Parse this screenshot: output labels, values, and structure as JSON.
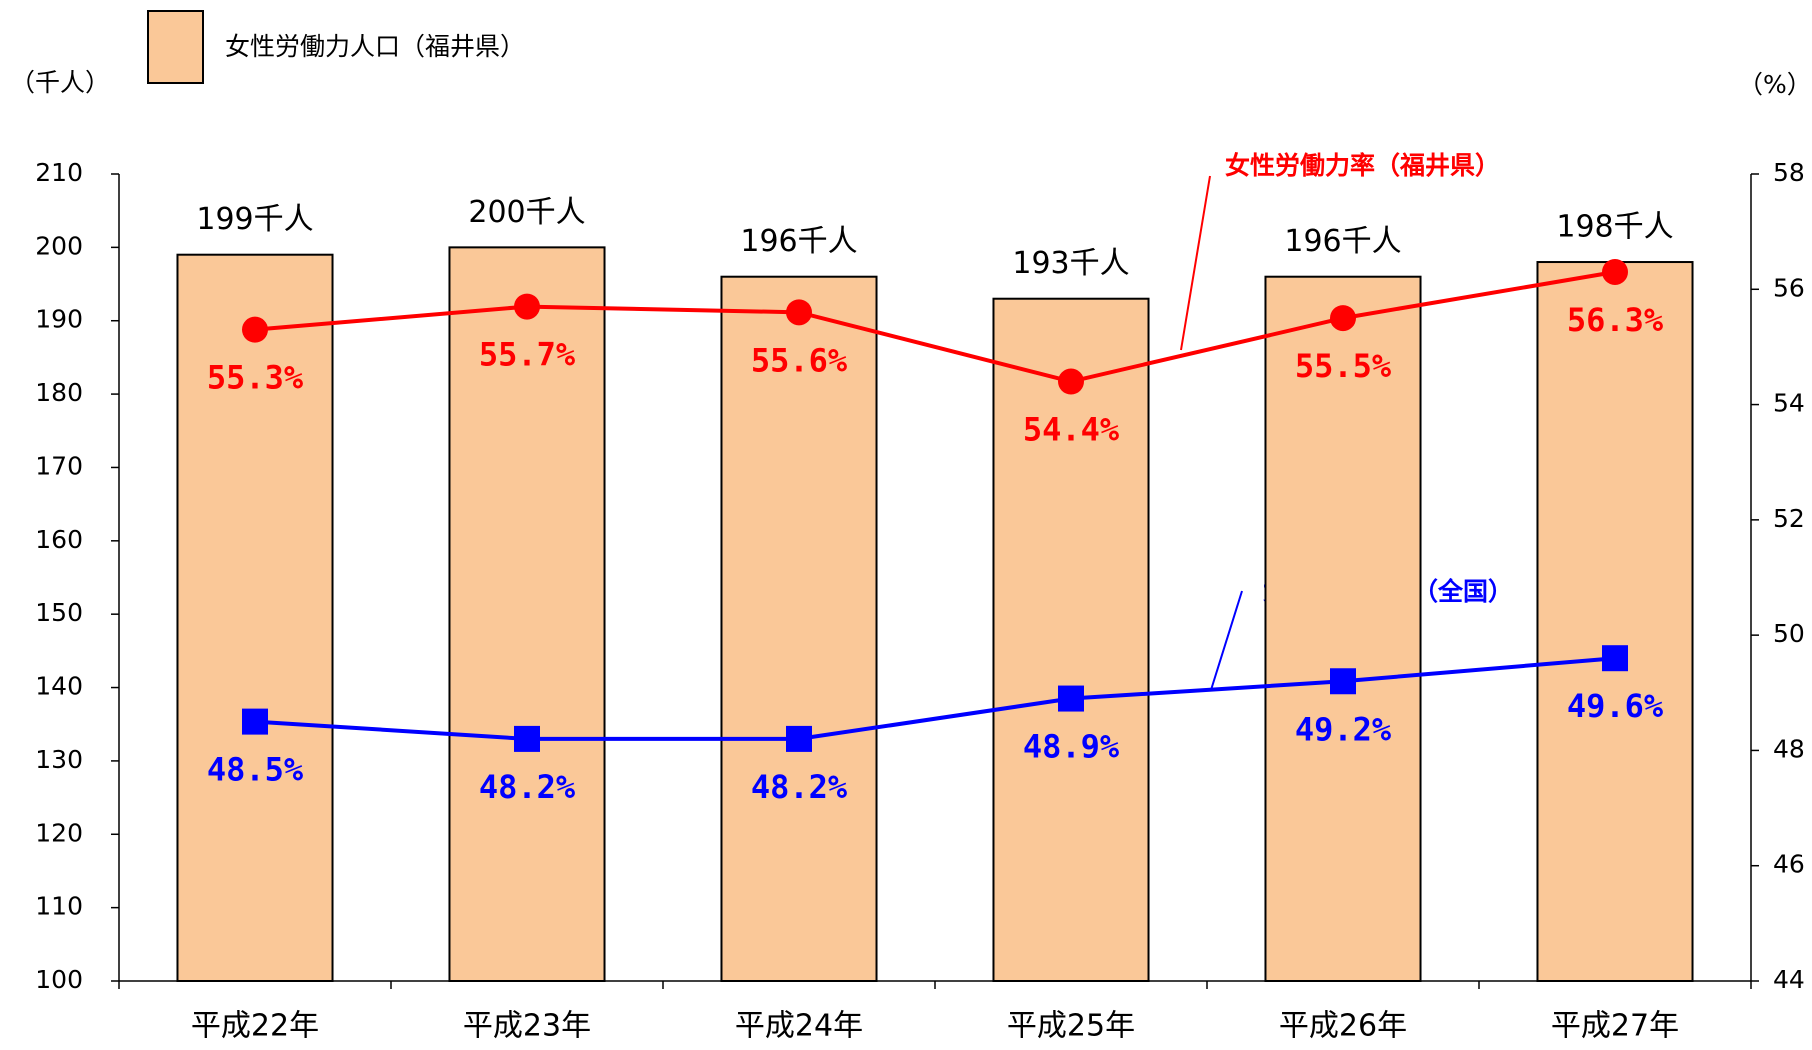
{
  "chart_data": {
    "type": "bar-line",
    "legend": "女性労働力人口（福井県）",
    "ylabel": "（千人）",
    "y2label": "（%）",
    "categories": [
      "平成22年",
      "平成23年",
      "平成24年",
      "平成25年",
      "平成26年",
      "平成27年"
    ],
    "bar": {
      "name": "女性労働力人口（福井県）",
      "color": "#fac898",
      "values": [
        199,
        200,
        196,
        193,
        196,
        198
      ],
      "value_labels": [
        "199千人",
        "200千人",
        "196千人",
        "193千人",
        "196千人",
        "198千人"
      ]
    },
    "series": [
      {
        "name": "女性労働力率（福井県）",
        "color": "#ff0000",
        "axis": "y2",
        "marker": "circle",
        "values": [
          55.3,
          55.7,
          55.6,
          54.4,
          55.5,
          56.3
        ],
        "value_labels": [
          "55.3%",
          "55.7%",
          "55.6%",
          "54.4%",
          "55.5%",
          "56.3%"
        ]
      },
      {
        "name": "女性労働力率（全国）",
        "color": "#0000ff",
        "axis": "y2",
        "marker": "square",
        "values": [
          48.5,
          48.2,
          48.2,
          48.9,
          49.2,
          49.6
        ],
        "value_labels": [
          "48.5%",
          "48.2%",
          "48.2%",
          "48.9%",
          "49.2%",
          "49.6%"
        ]
      }
    ],
    "ylim": [
      100,
      210
    ],
    "yticks": [
      100,
      110,
      120,
      130,
      140,
      150,
      160,
      170,
      180,
      190,
      200,
      210
    ],
    "y2lim": [
      44,
      58
    ],
    "y2ticks": [
      44,
      46,
      48,
      50,
      52,
      54,
      56,
      58
    ]
  }
}
